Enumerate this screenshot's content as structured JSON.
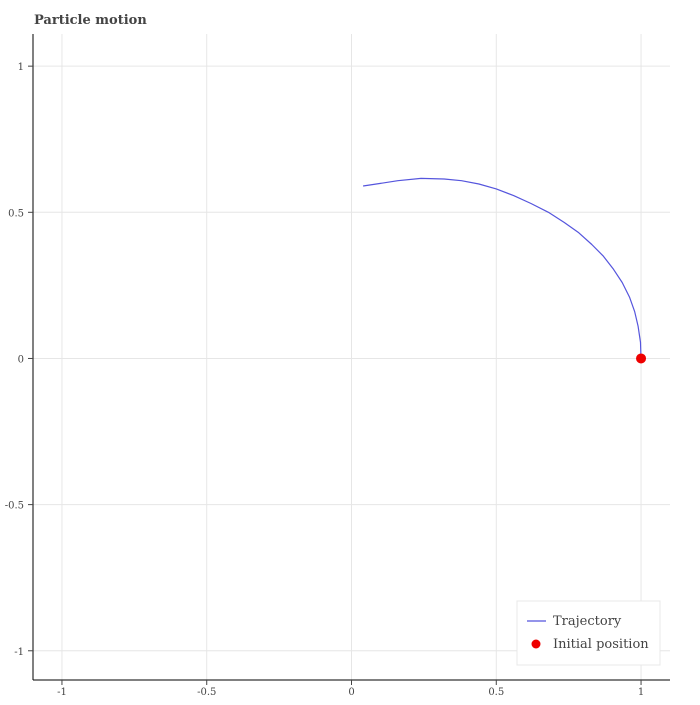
{
  "chart_data": {
    "type": "line",
    "title": "Particle motion",
    "xlabel": "",
    "ylabel": "",
    "xlim": [
      -1.1,
      1.1
    ],
    "ylim": [
      -1.1,
      1.11
    ],
    "x_ticks": [
      -1,
      -0.5,
      0,
      0.5,
      1
    ],
    "x_tick_labels": [
      "-1",
      "-0.5",
      "0",
      "0.5",
      "1"
    ],
    "y_ticks": [
      -1,
      -0.5,
      0,
      0.5,
      1
    ],
    "y_tick_labels": [
      "-1",
      "-0.5",
      "0",
      "0.5",
      "1"
    ],
    "grid": true,
    "legend": {
      "placement": "bottom-right"
    },
    "series": [
      {
        "name": "Trajectory",
        "kind": "line",
        "color": "#5555dd",
        "points": [
          [
            1.0,
            0.0
          ],
          [
            0.998,
            0.055
          ],
          [
            0.99,
            0.11
          ],
          [
            0.978,
            0.16
          ],
          [
            0.96,
            0.21
          ],
          [
            0.935,
            0.26
          ],
          [
            0.905,
            0.305
          ],
          [
            0.87,
            0.35
          ],
          [
            0.83,
            0.39
          ],
          [
            0.785,
            0.43
          ],
          [
            0.735,
            0.465
          ],
          [
            0.68,
            0.5
          ],
          [
            0.62,
            0.53
          ],
          [
            0.56,
            0.557
          ],
          [
            0.5,
            0.58
          ],
          [
            0.44,
            0.597
          ],
          [
            0.38,
            0.608
          ],
          [
            0.32,
            0.614
          ],
          [
            0.24,
            0.616
          ],
          [
            0.16,
            0.608
          ],
          [
            0.1,
            0.599
          ],
          [
            0.04,
            0.59
          ]
        ]
      },
      {
        "name": "Initial position",
        "kind": "scatter",
        "color": "#ee0000",
        "points": [
          [
            1.0,
            0.0
          ]
        ]
      }
    ]
  }
}
